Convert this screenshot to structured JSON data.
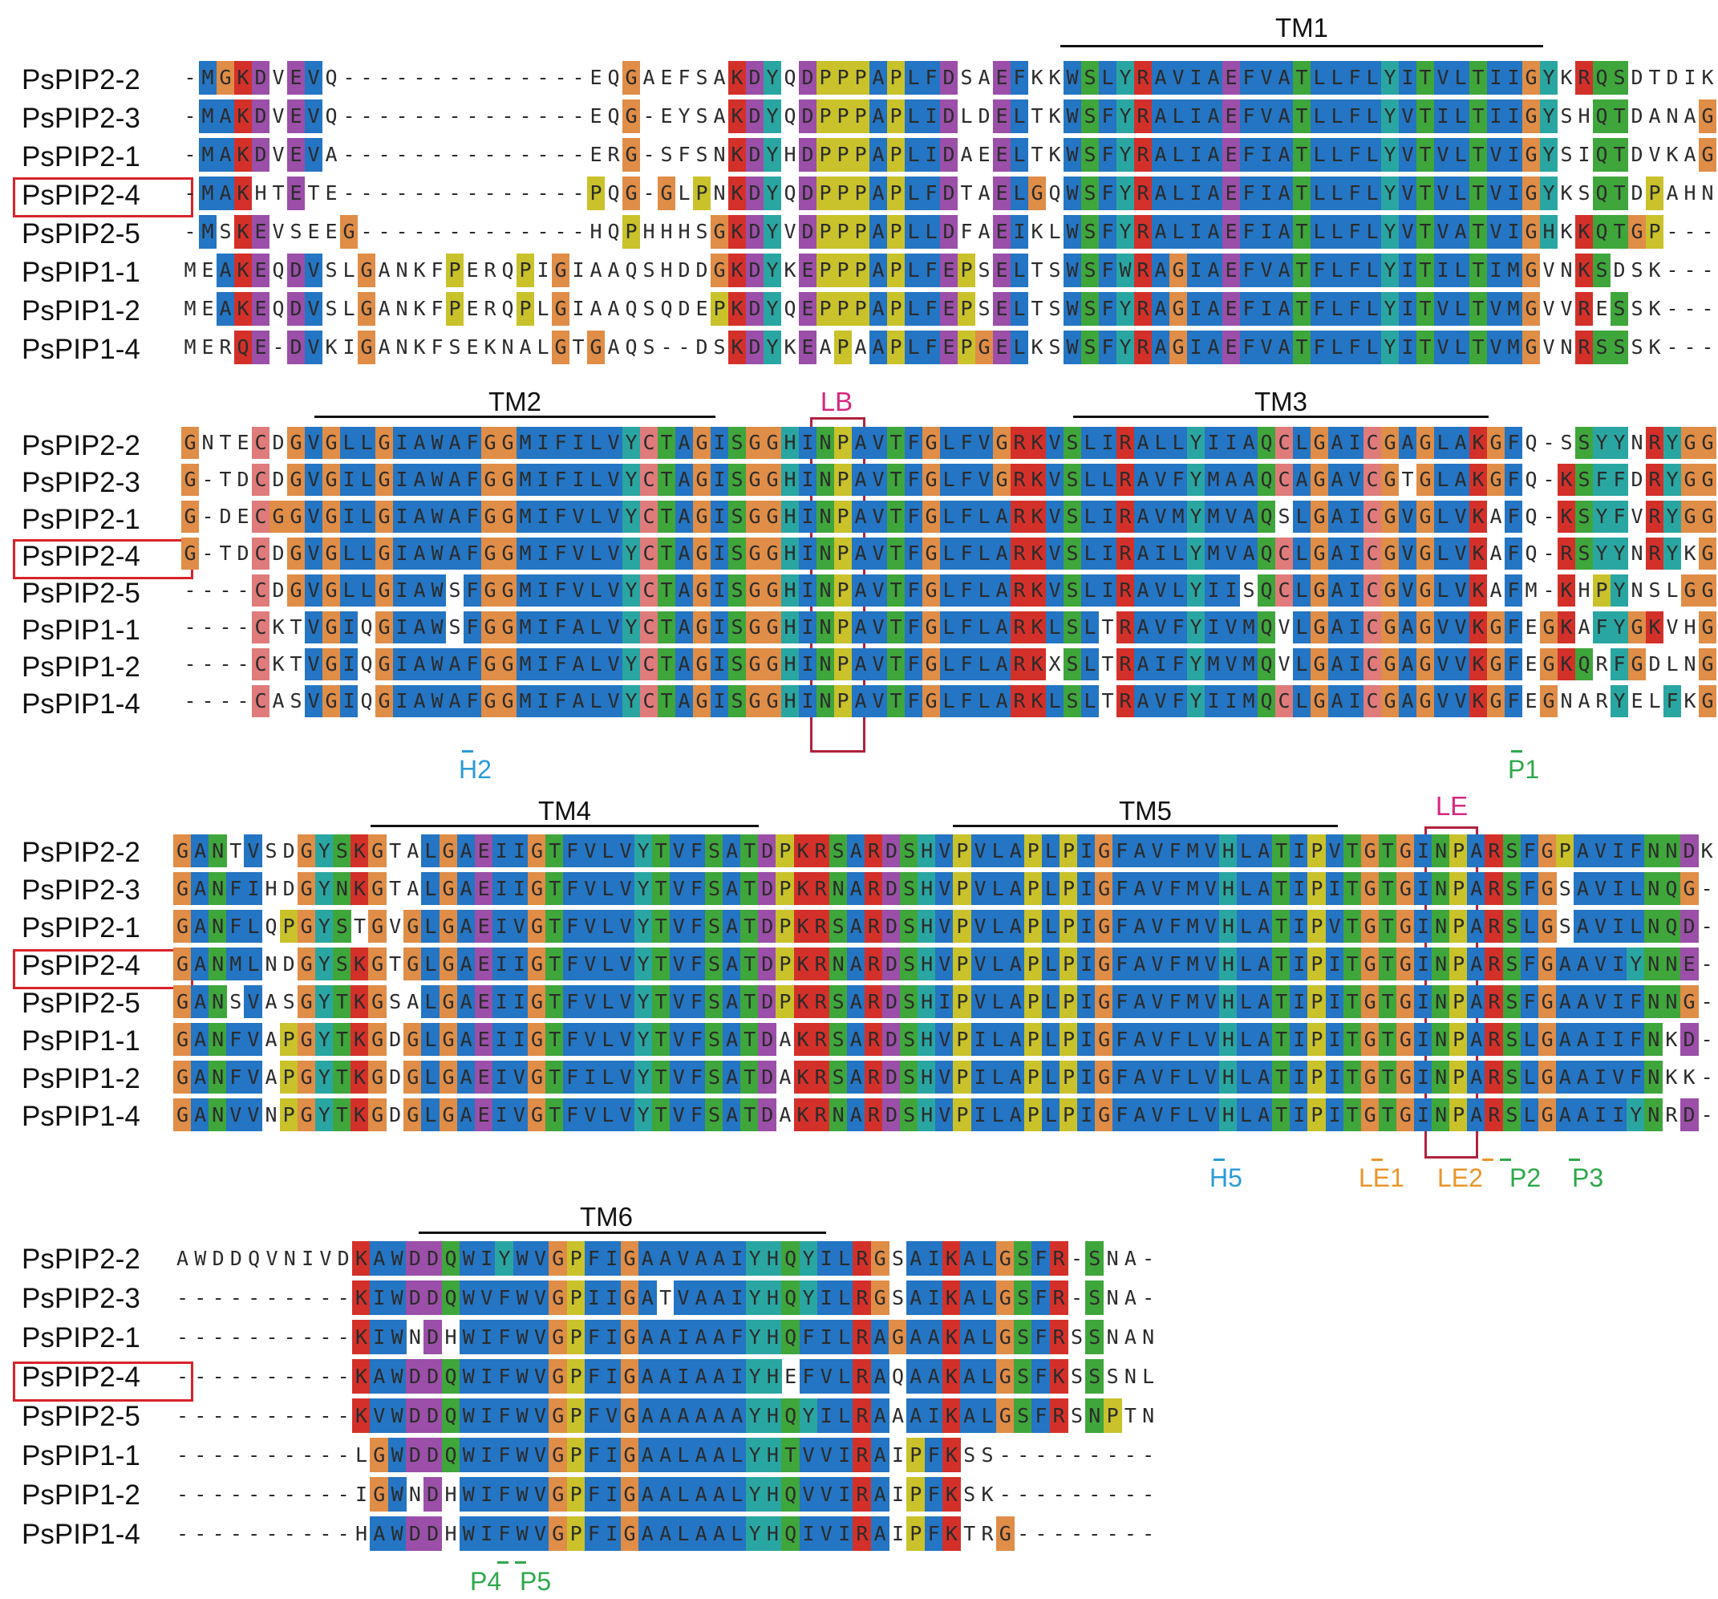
{
  "colors": {
    "hydrophobic": "#2475c3",
    "acidic": "#9b4fa8",
    "basic": "#d4302a",
    "polar": "#3fa63b",
    "proline": "#c9c22a",
    "glycine": "#e08d47",
    "aromatic": "#2aa6a2",
    "cysteine": "#e07b7b",
    "tm_line": "#111111",
    "motif_box": "#b0233d",
    "motif_label": "#d6287f",
    "highlight_box": "#d8232a",
    "h_label": "#2a9bd8",
    "le_label": "#e8962b",
    "p_label": "#2ea84a"
  },
  "highlighted_sequence": "PsPIP2-4",
  "blocks": [
    {
      "names": [
        "PsPIP2-2",
        "PsPIP2-3",
        "PsPIP2-1",
        "PsPIP2-4",
        "PsPIP2-5",
        "PsPIP1-1",
        "PsPIP1-2",
        "PsPIP1-4"
      ],
      "sequences": [
        "-MGKDVEVQ--------------EQGAEFSAKDYQDPPPAPLFDSAEFKKWSLYRAVIAEFVATLLFLYITVLTIIGYKRQSDTDIK",
        "-MAKDVEVQ--------------EQG-EYSAKDYQDPPPAPLIDLDELTKWSFYRALIAEFVATLLFLYVTILTIIGYSHQTDANAG",
        "-MAKDVEVA--------------ERG-SFSNKDYHDPPPAPLIDAEELTKWSFYRALIAEFIATLLFLYVTVLTVIGYSIQTDVKAG",
        "-MAKHTETE--------------PQG-GLPNKDYQDPPPAPLFDTAELGQWSFYRALIAEFIATLLFLYVTVLTVIGYKSQTDPAHN",
        "-MSKEVSEEG-------------HQPHHHSGKDYVDPPPAPLLDFAEIKLWSFYRALIAEFIATLLFLYVTVATVIGHKKQTGP---",
        "MEAKEQDVSLGANKFPERQPIGIAAQSHDDGKDYKEPPPAPLFEPSELTSWSFWRAGIAEFVATFLFLYITILTIMGVNKSDSK---",
        "MEAKEQDVSLGANKFPERQPLGIAAQSQDEPKDYQEPPPAPLFEPSELTSWSFYRAGIAEFIATFLFLYITVLTVMGVVRESSK---",
        "MERQE-DVKIGANKFSEKNALGTGAQS--DSKDYKEAPAAPLFEPGELKSWSFYRAGIAEFVATFLFLYITVLTVMGVNRSSSK---"
      ],
      "domains": [
        {
          "label": "TM1"
        }
      ],
      "motifs": [],
      "sites": []
    },
    {
      "names": [
        "PsPIP2-2",
        "PsPIP2-3",
        "PsPIP2-1",
        "PsPIP2-4",
        "PsPIP2-5",
        "PsPIP1-1",
        "PsPIP1-2",
        "PsPIP1-4"
      ],
      "sequences": [
        "GNTECDGVGLLGIAWAFGGMIFILVYCTAGISGGHINPAVTFGLFVGRKVSLIRALLYIIAQCLGAICGAGLAKGFQ-SSYYNRYGG",
        "G-TDCDGVGILGIAWAFGGMIFILVYCTAGISGGHINPAVTFGLFVGRKVSLLRAVFYMAAQCAGAVCGTGLAKGFQ-KSFFDRYGG",
        "G-DECGGVGILGIAWAFGGMIFVLVYCTAGISGGHINPAVTFGLFLARKVSLIRAVMYMVAQSLGAICGVGLVKAFQ-KSYFVRYGG",
        "G-TDCDGVGLLGIAWAFGGMIFVLVYCTAGISGGHINPAVTFGLFLARKVSLIRAILYMVAQCLGAICGVGLVKAFQ-RSYYNRYKG",
        "----CDGVGLLGIAWSFGGMIFVLVYCTAGISGGHINPAVTFGLFLARKVSLIRAVLYIISQCLGAICGVGLVKAFM-KHPYNSLGG",
        "----CKTVGIQGIAWSFGGMIFALVYCTAGISGGHINPAVTFGLFLARKLSLTRAVFYIVMQVLGAICGAGVVKGFEGKAFYGKVHG",
        "----CKTVGIQGIAWAFGGMIFALVYCTAGISGGHINPAVTFGLFLARKXSLTRAIFYMVMQVLGAICGAGVVKGFEGKQRFGDLNG",
        "----CASVGIQGIAWAFGGMIFALVYCTAGISGGHINPAVTFGLFLARKLSLTRAVFYIIMQCLGAICGAGVVKGFEGNARYELFKG"
      ],
      "domains": [
        {
          "label": "TM2"
        },
        {
          "label": "TM3"
        }
      ],
      "motifs": [
        {
          "label": "LB"
        }
      ],
      "sites": [
        {
          "label": "H2",
          "color_key": "h_label"
        },
        {
          "label": "P1",
          "color_key": "p_label"
        }
      ]
    },
    {
      "names": [
        "PsPIP2-2",
        "PsPIP2-3",
        "PsPIP2-1",
        "PsPIP2-4",
        "PsPIP2-5",
        "PsPIP1-1",
        "PsPIP1-2",
        "PsPIP1-4"
      ],
      "sequences": [
        "GANTVSDGYSKGTALGAEIIGTFVLVYTVFSATDPKRSARDSHVPVLAPLPIGFAVFMVHLATIPVTGTGINPARSFGPAVIFNNDK",
        "GANFIHDGYNKGTALGAEIIGTFVLVYTVFSATDPKRNARDSHVPVLAPLPIGFAVFMVHLATIPITGTGINPARSFGSAVILNQG-",
        "GANFLQPGYSTGVGLGAEIVGTFVLVYTVFSATDPKRSARDSHVPVLAPLPIGFAVFMVHLATIPVTGTGINPARSLGSAVILNQD-",
        "GANMLNDGYSKGTGLGAEIIGTFVLVYTVFSATDPKRNARDSHVPVLAPLPIGFAVFMVHLATIPITGTGINPARSFGAAVIYNNE-",
        "GANSVASGYTKGSALGAEIIGTFVLVYTVFSATDPKRSARDSHIPVLAPLPIGFAVFMVHLATIPITGTGINPARSFGAAVIFNNG-",
        "GANFVAPGYTKGDGLGAEIIGTFVLVYTVFSATDAKRSARDSHVPILAPLPIGFAVFLVHLATIPITGTGINPARSLGAAIIFNKD-",
        "GANFVAPGYTKGDGLGAEIVGTFILVYTVFSATDAKRSARDSHVPILAPLPIGFAVFLVHLATIPITGTGINPARSLGAAIVFNKK-",
        "GANVVNPGYTKGDGLGAEIVGTFVLVYTVFSATDAKRNARDSHVPILAPLPIGFAVFLVHLATIPITGTGINPARSLGAAIIYNRD-"
      ],
      "domains": [
        {
          "label": "TM4"
        },
        {
          "label": "TM5"
        }
      ],
      "motifs": [
        {
          "label": "LE"
        }
      ],
      "sites": [
        {
          "label": "H5",
          "color_key": "h_label"
        },
        {
          "label": "LE1",
          "color_key": "le_label"
        },
        {
          "label": "LE2",
          "color_key": "le_label"
        },
        {
          "label": "P2",
          "color_key": "p_label"
        },
        {
          "label": "P3",
          "color_key": "p_label"
        }
      ]
    },
    {
      "names": [
        "PsPIP2-2",
        "PsPIP2-3",
        "PsPIP2-1",
        "PsPIP2-4",
        "PsPIP2-5",
        "PsPIP1-1",
        "PsPIP1-2",
        "PsPIP1-4"
      ],
      "sequences": [
        "AWDDQVNIVDKAWDDQWIYWVGPFIGAAVAAIYHQYILRGSAIKALGSFR-SNA-",
        "----------KIWDDQWVFWVGPIIGATVAAIYHQYILRGSAIKALGSFR-SNA-",
        "----------KIWNDHWIFWVGPFIGAAIAAFYHQFILRAGAAKALGSFRSSNAN",
        "----------KAWDDQWIFWVGPFIGAAIAAIYHEFVLRAQAAKALGSFKSSSNL",
        "----------KVWDDQWIFWVGPFVGAAAAAAYHQYILRAAAIKALGSFRSNPTN",
        "----------LGWDDQWIFWVGPFIGAALAALYHTVVIRAIPFKSS---------",
        "----------IGWNDHWIFWVGPFIGAALAALYHQVVIRAIPFKSK---------",
        "----------HAWDDHWIFWVGPFIGAALAALYHQIVIRAIPFKTRG--------"
      ],
      "domains": [
        {
          "label": "TM6"
        }
      ],
      "motifs": [],
      "sites": [
        {
          "label": "P4",
          "color_key": "p_label"
        },
        {
          "label": "P5",
          "color_key": "p_label"
        }
      ]
    }
  ]
}
